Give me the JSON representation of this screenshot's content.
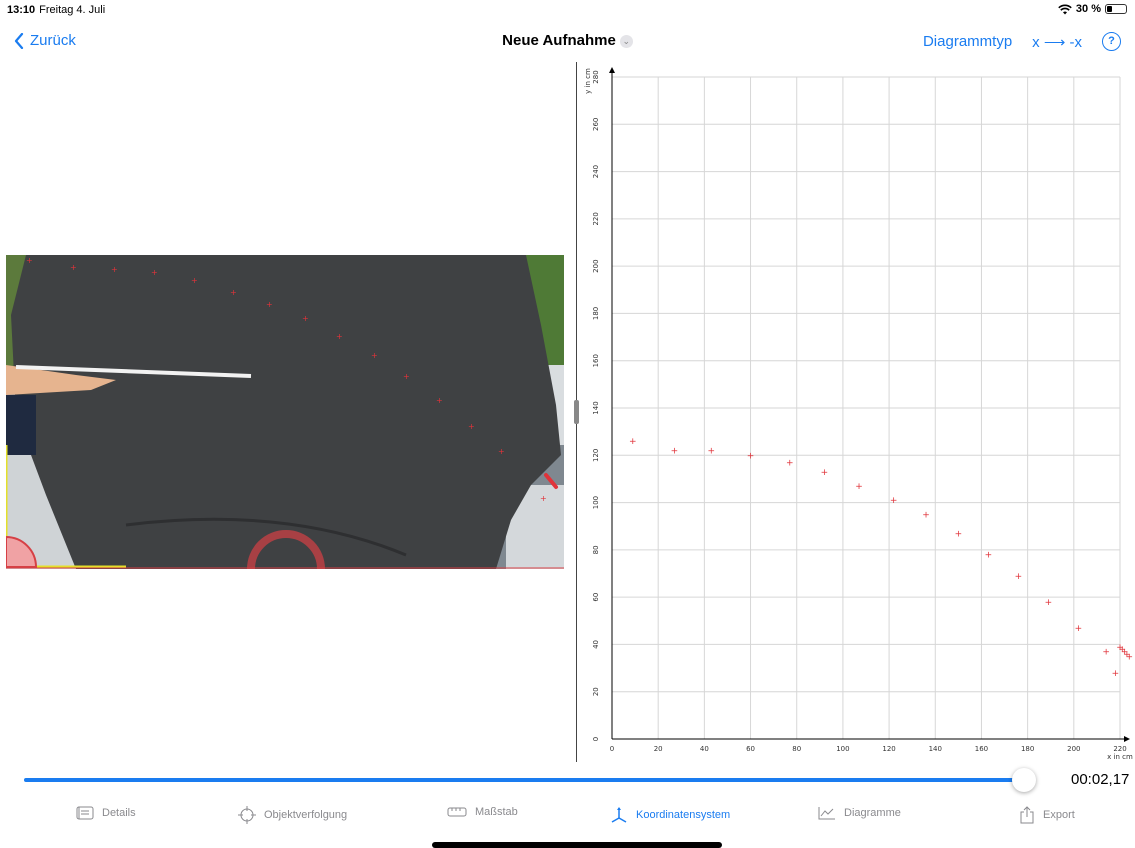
{
  "status": {
    "time": "13:10",
    "date": "Freitag 4. Juli",
    "battery": "30 %",
    "battery_level": 0.3
  },
  "nav": {
    "back_label": "Zurück",
    "title": "Neue Aufnahme",
    "diagram_type": "Diagrammtyp",
    "flip_x": "x ⟶ -x",
    "help": "?"
  },
  "playback": {
    "timecode": "00:02,17",
    "progress": 0.98
  },
  "tabs": [
    {
      "label": "Details",
      "icon": "details-icon"
    },
    {
      "label": "Objektverfolgung",
      "icon": "target-icon"
    },
    {
      "label": "Maßstab",
      "icon": "ruler-icon"
    },
    {
      "label": "Koordinatensystem",
      "icon": "coordinate-system-icon"
    },
    {
      "label": "Diagramme",
      "icon": "chart-icon"
    },
    {
      "label": "Export",
      "icon": "share-icon"
    }
  ],
  "active_tab": "Koordinatensystem",
  "colors": {
    "accent": "#1a7cf0",
    "marker": "#e0333a",
    "grid": "#d6d6d6"
  },
  "chart_data": {
    "type": "scatter",
    "xlabel": "x in cm",
    "ylabel": "y in cm",
    "xlim": [
      0,
      220
    ],
    "ylim": [
      0,
      280
    ],
    "xticks": [
      0,
      20,
      40,
      60,
      80,
      100,
      120,
      140,
      160,
      180,
      200,
      220
    ],
    "yticks": [
      0,
      20,
      40,
      60,
      80,
      100,
      120,
      140,
      160,
      180,
      200,
      220,
      240,
      260,
      280
    ],
    "grid": true,
    "series": [
      {
        "marker": "+",
        "color": "#e0333a",
        "points": [
          [
            9,
            126
          ],
          [
            27,
            122
          ],
          [
            43,
            122
          ],
          [
            60,
            120
          ],
          [
            77,
            117
          ],
          [
            92,
            113
          ],
          [
            107,
            107
          ],
          [
            122,
            101
          ],
          [
            136,
            95
          ],
          [
            150,
            87
          ],
          [
            163,
            78
          ],
          [
            176,
            69
          ],
          [
            189,
            58
          ],
          [
            202,
            47
          ],
          [
            214,
            37
          ],
          [
            218,
            28
          ],
          [
            220,
            39
          ],
          [
            221,
            38
          ],
          [
            222,
            37
          ],
          [
            223,
            36
          ],
          [
            224,
            35
          ]
        ]
      }
    ]
  }
}
